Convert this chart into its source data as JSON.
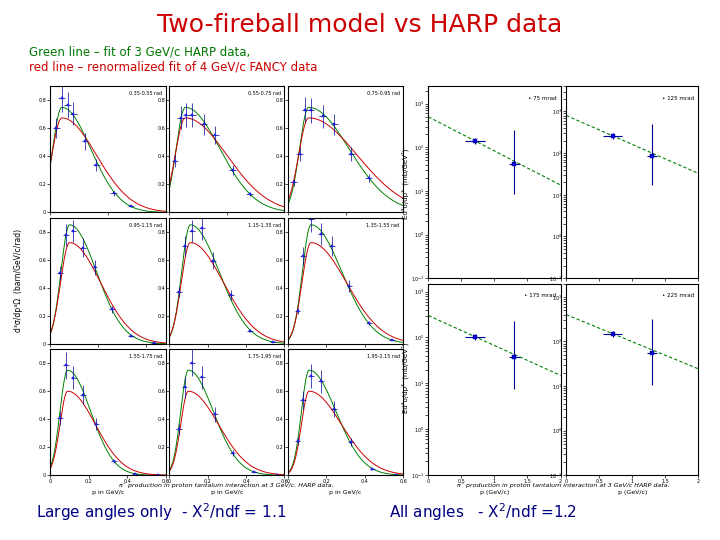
{
  "title": "Two-fireball model vs HARP data",
  "title_color": "#cc0000",
  "title_fontsize": 18,
  "subtitle_line1": "Green line – fit of 3 GeV/c HARP data,",
  "subtitle_line2": "red line – renormalized fit of 4 GeV/c FANCY data",
  "subtitle_color_green": "#007700",
  "subtitle_color_red": "#cc0000",
  "subtitle_fontsize": 8.5,
  "left_image_label": "Large angles only  - X²/ndf = 1.1",
  "right_image_label": "All angles   - X²/ndf =1.2",
  "label_color": "#000080",
  "label_fontsize": 11,
  "background_color": "#ffffff",
  "left_panel_labels": [
    [
      "0.35-0.55 rad",
      "0.55-0.75 rad",
      "0.75-0.95 rad"
    ],
    [
      "0.95-1.15 rad",
      "1.15-1.35 rad",
      "1.35-1.55 rad"
    ],
    [
      "1.55-1.75 rad",
      "1.75-1.95 rad",
      "1.95-2.15 rad"
    ]
  ],
  "right_panel_labels": [
    "75 mrad",
    "125 mrad",
    "175 mrad",
    "225 mrad"
  ],
  "left_ylabel": "d³σ/dp³Ω  (barn/GeV/c/rad)",
  "right_ylabel_top": "Ed³σ/dp³  (mb/GeV²)",
  "right_ylabel_bot": "Ed³σ/dp³  (mb/GeV²)",
  "left_caption": "π⁻ production in proton tantalum interaction at 3 GeV/c. HARP data.",
  "right_caption": "π⁻ production in proton tantalum interaction at 3 GeV/c HARP data."
}
